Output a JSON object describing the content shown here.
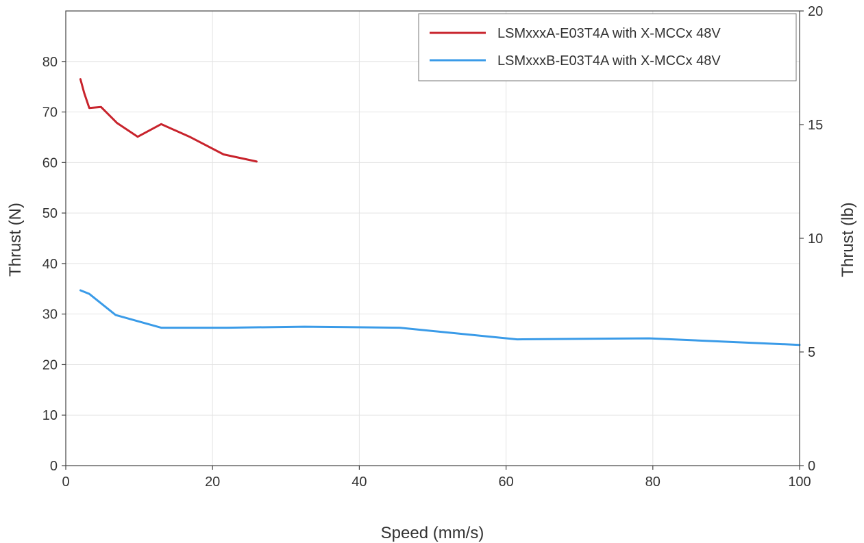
{
  "chart_data": {
    "type": "line",
    "xlabel": "Speed (mm/s)",
    "ylabel": "Thrust (N)",
    "y2label": "Thrust (lb)",
    "xlim": [
      0,
      100
    ],
    "ylim": [
      0,
      90
    ],
    "y2lim": [
      0,
      20
    ],
    "x_ticks": [
      0,
      20,
      40,
      60,
      80,
      100
    ],
    "y_ticks": [
      0,
      10,
      20,
      30,
      40,
      50,
      60,
      70,
      80
    ],
    "y2_ticks": [
      0,
      5,
      10,
      15,
      20
    ],
    "grid": true,
    "legend_position": "top-right",
    "series": [
      {
        "name": "LSMxxxA-E03T4A with X-MCCx 48V",
        "color": "#c8232c",
        "x": [
          2.0,
          2.5,
          3.2,
          4.8,
          7.0,
          9.8,
          13.0,
          17.0,
          21.5,
          26.0
        ],
        "y": [
          76.5,
          73.8,
          70.8,
          71.0,
          67.8,
          65.1,
          67.6,
          65.0,
          61.6,
          60.2
        ]
      },
      {
        "name": "LSMxxxB-E03T4A with X-MCCx 48V",
        "color": "#3a9be8",
        "x": [
          2.0,
          3.2,
          6.8,
          13.0,
          22.0,
          32.5,
          45.5,
          61.5,
          79.5,
          100.0
        ],
        "y": [
          34.7,
          34.0,
          29.8,
          27.3,
          27.3,
          27.5,
          27.3,
          25.0,
          25.2,
          23.9
        ]
      }
    ]
  }
}
